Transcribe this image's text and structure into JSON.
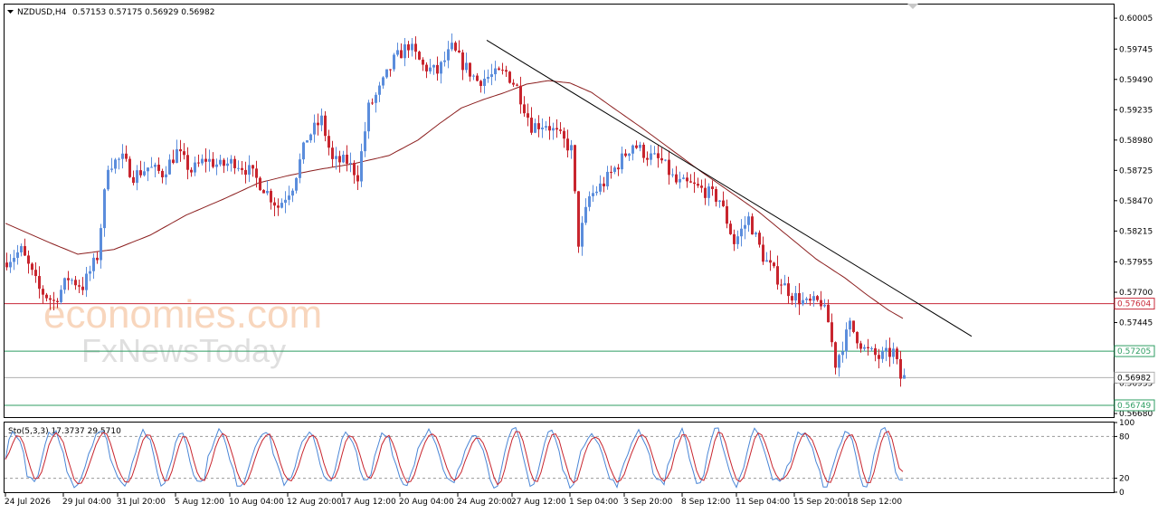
{
  "header": {
    "symbol": "NZDUSD,H4",
    "ohlc": "0.57153 0.57175 0.56929 0.56982",
    "stoch_label": "Sto(5,3,3) 17.3737 29.5710"
  },
  "watermark": {
    "line1": "economies.com",
    "line2": "FxNewsToday"
  },
  "chart_data": {
    "type": "candlestick",
    "symbol": "NZDUSD",
    "timeframe": "H4",
    "y_range": [
      0.5665,
      0.6012
    ],
    "y_ticks": [
      "0.60005",
      "0.59745",
      "0.59490",
      "0.59235",
      "0.58980",
      "0.58725",
      "0.58470",
      "0.58215",
      "0.57955",
      "0.57700",
      "0.57445",
      "0.57190",
      "0.56935",
      "0.56680"
    ],
    "x_ticks": [
      "24 Jul 2026",
      "29 Jul 04:00",
      "31 Jul 20:00",
      "5 Aug 12:00",
      "10 Aug 04:00",
      "12 Aug 20:00",
      "17 Aug 12:00",
      "20 Aug 04:00",
      "24 Aug 20:00",
      "27 Aug 12:00",
      "1 Sep 04:00",
      "3 Sep 20:00",
      "8 Sep 12:00",
      "11 Sep 04:00",
      "15 Sep 20:00",
      "18 Sep 12:00"
    ],
    "path_keypoints": [
      [
        0,
        0.5795
      ],
      [
        5,
        0.5805
      ],
      [
        10,
        0.5772
      ],
      [
        14,
        0.5762
      ],
      [
        18,
        0.5782
      ],
      [
        22,
        0.5775
      ],
      [
        26,
        0.58
      ],
      [
        29,
        0.5878
      ],
      [
        33,
        0.5882
      ],
      [
        36,
        0.5868
      ],
      [
        40,
        0.5875
      ],
      [
        44,
        0.587
      ],
      [
        48,
        0.5888
      ],
      [
        52,
        0.5872
      ],
      [
        56,
        0.5882
      ],
      [
        60,
        0.5876
      ],
      [
        64,
        0.588
      ],
      [
        68,
        0.5872
      ],
      [
        72,
        0.5858
      ],
      [
        76,
        0.5842
      ],
      [
        80,
        0.586
      ],
      [
        84,
        0.59
      ],
      [
        88,
        0.5915
      ],
      [
        91,
        0.588
      ],
      [
        95,
        0.588
      ],
      [
        98,
        0.5868
      ],
      [
        101,
        0.5925
      ],
      [
        104,
        0.594
      ],
      [
        108,
        0.5965
      ],
      [
        112,
        0.5978
      ],
      [
        116,
        0.596
      ],
      [
        120,
        0.5955
      ],
      [
        124,
        0.5975
      ],
      [
        127,
        0.5962
      ],
      [
        131,
        0.5948
      ],
      [
        135,
        0.5952
      ],
      [
        139,
        0.5955
      ],
      [
        142,
        0.5942
      ],
      [
        146,
        0.591
      ],
      [
        150,
        0.5912
      ],
      [
        154,
        0.59
      ],
      [
        157,
        0.589
      ],
      [
        159,
        0.5812
      ],
      [
        162,
        0.585
      ],
      [
        166,
        0.5862
      ],
      [
        170,
        0.5878
      ],
      [
        174,
        0.5895
      ],
      [
        178,
        0.5885
      ],
      [
        182,
        0.588
      ],
      [
        186,
        0.5862
      ],
      [
        190,
        0.586
      ],
      [
        194,
        0.5855
      ],
      [
        198,
        0.5848
      ],
      [
        202,
        0.5812
      ],
      [
        206,
        0.5832
      ],
      [
        210,
        0.58
      ],
      [
        214,
        0.5782
      ],
      [
        218,
        0.5768
      ],
      [
        222,
        0.576
      ],
      [
        226,
        0.5762
      ],
      [
        228,
        0.5745
      ],
      [
        230,
        0.571
      ],
      [
        234,
        0.5742
      ],
      [
        238,
        0.5722
      ],
      [
        242,
        0.5715
      ],
      [
        246,
        0.572
      ],
      [
        248,
        0.5698
      ]
    ],
    "candle_count": 249,
    "candle_colors": {
      "up": "#5b8ddc",
      "down": "#c8252e"
    },
    "moving_average": {
      "color": "#8b1e1e",
      "points": [
        [
          0,
          0.5828
        ],
        [
          12,
          0.5812
        ],
        [
          20,
          0.5802
        ],
        [
          30,
          0.5806
        ],
        [
          40,
          0.5818
        ],
        [
          50,
          0.5835
        ],
        [
          60,
          0.5848
        ],
        [
          70,
          0.5862
        ],
        [
          78,
          0.5868
        ],
        [
          86,
          0.5873
        ],
        [
          96,
          0.5878
        ],
        [
          106,
          0.5885
        ],
        [
          114,
          0.5898
        ],
        [
          120,
          0.5912
        ],
        [
          126,
          0.5925
        ],
        [
          132,
          0.5932
        ],
        [
          138,
          0.5938
        ],
        [
          144,
          0.5945
        ],
        [
          150,
          0.5948
        ],
        [
          156,
          0.5946
        ],
        [
          162,
          0.5938
        ],
        [
          168,
          0.5925
        ],
        [
          176,
          0.5908
        ],
        [
          184,
          0.589
        ],
        [
          192,
          0.5872
        ],
        [
          200,
          0.5855
        ],
        [
          208,
          0.5838
        ],
        [
          216,
          0.5818
        ],
        [
          224,
          0.5798
        ],
        [
          232,
          0.5782
        ],
        [
          238,
          0.5768
        ],
        [
          244,
          0.5755
        ],
        [
          248,
          0.5748
        ]
      ]
    },
    "trendline": {
      "color": "#000000",
      "points": [
        [
          133,
          0.5982
        ],
        [
          267,
          0.5733
        ]
      ]
    },
    "horizontal_lines": [
      {
        "value": 0.57604,
        "label": "0.57604",
        "color": "#c82838",
        "tag_bg": "#ffffff",
        "tag_fg": "#c82838"
      },
      {
        "value": 0.57205,
        "label": "0.57205",
        "color": "#2f9e63",
        "tag_bg": "#ffffff",
        "tag_fg": "#2f9e63"
      },
      {
        "value": 0.56749,
        "label": "0.56749",
        "color": "#2f9e63",
        "tag_bg": "#ffffff",
        "tag_fg": "#2f9e63"
      },
      {
        "value": 0.56982,
        "label": "0.56982",
        "color": "#b0b0b0",
        "tag_bg": "#ffffff",
        "tag_fg": "#000000"
      }
    ],
    "stochastic": {
      "params": "5,3,3",
      "k": 17.3737,
      "d": 29.571,
      "levels": [
        80,
        20
      ],
      "y_ticks": [
        "100",
        "80",
        "20",
        "0"
      ],
      "k_color": "#4a86d6",
      "d_color": "#c8252e"
    }
  }
}
